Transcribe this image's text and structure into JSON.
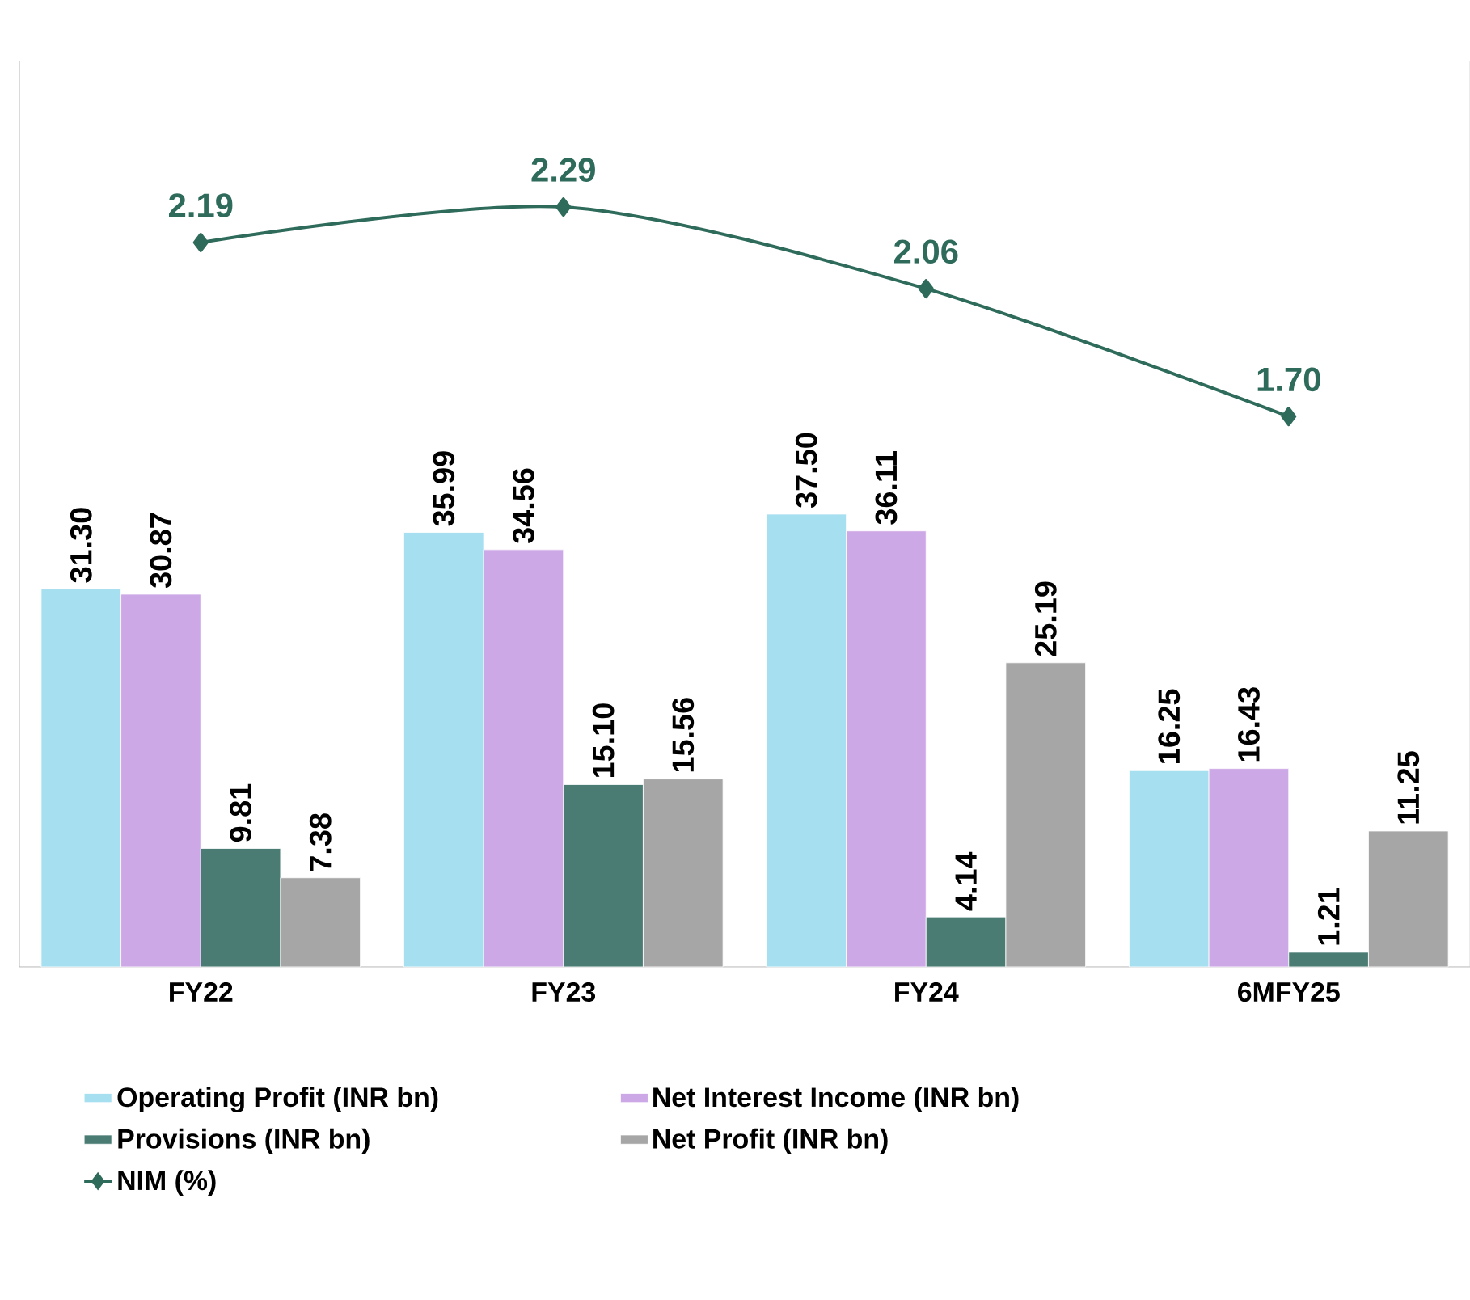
{
  "chart_data": {
    "type": "bar",
    "categories": [
      "FY22",
      "FY23",
      "FY24",
      "6MFY25"
    ],
    "series": [
      {
        "name": "Operating Profit (INR bn)",
        "color": "#a6dff0",
        "values": [
          31.3,
          35.99,
          37.5,
          16.25
        ],
        "value_labels": [
          "31.30",
          "35.99",
          "37.50",
          "16.25"
        ]
      },
      {
        "name": "Net Interest Income (INR bn)",
        "color": "#cda8e6",
        "values": [
          30.87,
          34.56,
          36.11,
          16.43
        ],
        "value_labels": [
          "30.87",
          "34.56",
          "36.11",
          "16.43"
        ]
      },
      {
        "name": "Provisions (INR bn)",
        "color": "#4a7c74",
        "values": [
          9.81,
          15.1,
          4.14,
          1.21
        ],
        "value_labels": [
          "9.81",
          "15.10",
          "4.14",
          "1.21"
        ]
      },
      {
        "name": "Net Profit (INR bn)",
        "color": "#a6a6a6",
        "values": [
          7.38,
          15.56,
          25.19,
          11.25
        ],
        "value_labels": [
          "7.38",
          "15.56",
          "25.19",
          "11.25"
        ]
      },
      {
        "name": "NIM (%)",
        "type": "line",
        "axis": "y2",
        "color": "#2e6b5a",
        "values": [
          2.19,
          2.29,
          2.06,
          1.7
        ],
        "value_labels": [
          "2.19",
          "2.29",
          "2.06",
          "1.70"
        ]
      }
    ],
    "ylim": [
      0,
      75
    ],
    "y2lim": [
      0.15,
      2.7
    ],
    "marker": "diamond",
    "legend": "bottom",
    "tick_labels": "x"
  }
}
